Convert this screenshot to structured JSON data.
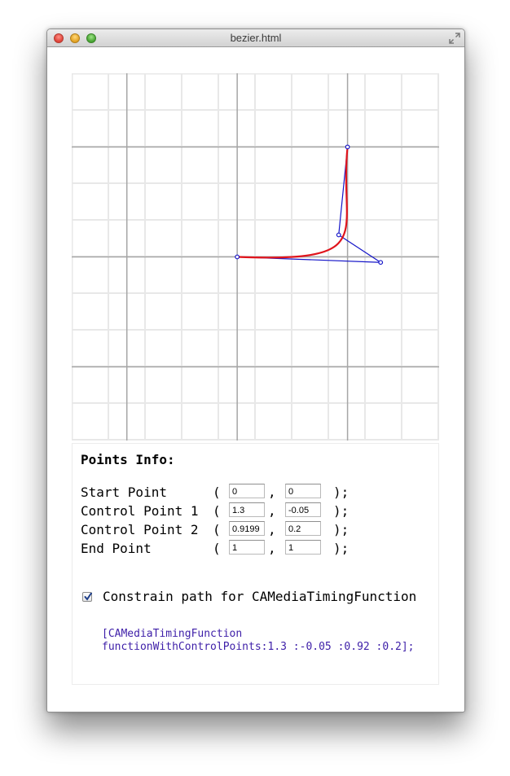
{
  "window": {
    "title": "bezier.html"
  },
  "points_info": {
    "title": "Points Info:",
    "open_paren": "(",
    "comma": ",",
    "close_paren": ");",
    "rows": [
      {
        "label": "Start Point",
        "x": "0",
        "y": "0"
      },
      {
        "label": "Control Point 1",
        "x": "1.3",
        "y": "-0.05"
      },
      {
        "label": "Control Point 2",
        "x": "0.9199",
        "y": "0.2"
      },
      {
        "label": "End Point",
        "x": "1",
        "y": "1"
      }
    ]
  },
  "constrain": {
    "label": "Constrain path for CAMediaTimingFunction",
    "checked": true
  },
  "code": {
    "line1": "[CAMediaTimingFunction",
    "line2": "functionWithControlPoints:1.3 :-0.05 :0.92 :0.2];"
  },
  "chart_data": {
    "type": "line",
    "xlim": [
      -1.5,
      1.83
    ],
    "ylim": [
      -1.67,
      1.67
    ],
    "grid": true,
    "points": {
      "start": [
        0,
        0
      ],
      "control1": [
        1.3,
        -0.05
      ],
      "control2": [
        0.9199,
        0.2
      ],
      "end": [
        1,
        1
      ]
    },
    "colors": {
      "curve": "#e0141c",
      "handles": "#1414c8",
      "grid_minor": "#e8e8e8",
      "grid_major": "#a6a6a6"
    }
  }
}
